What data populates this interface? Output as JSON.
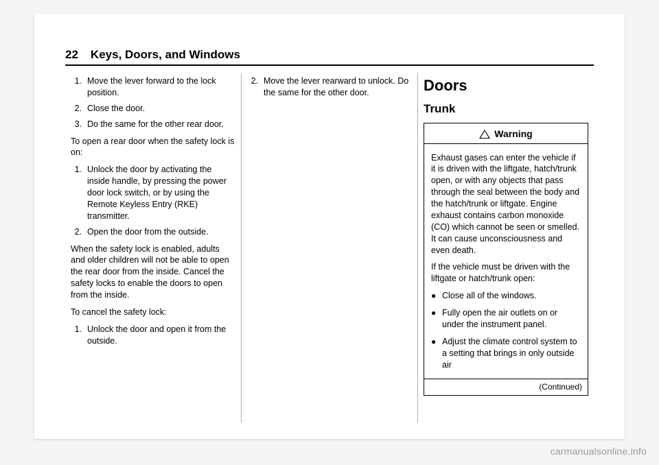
{
  "header": {
    "page_number": "22",
    "chapter_title": "Keys, Doors, and Windows"
  },
  "col1": {
    "list1": [
      "Move the lever forward to the lock position.",
      "Close the door.",
      "Do the same for the other rear door."
    ],
    "para1": "To open a rear door when the safety lock is on:",
    "list2": [
      "Unlock the door by activating the inside handle, by pressing the power door lock switch, or by using the Remote Keyless Entry (RKE) transmitter.",
      "Open the door from the outside."
    ],
    "para2": "When the safety lock is enabled, adults and older children will not be able to open the rear door from the inside. Cancel the safety locks to enable the doors to open from the inside.",
    "para3": "To cancel the safety lock:",
    "list3": [
      "Unlock the door and open it from the outside."
    ]
  },
  "col2": {
    "list1_start": 2,
    "list1": [
      "Move the lever rearward to unlock. Do the same for the other door."
    ]
  },
  "col3": {
    "h1": "Doors",
    "h2": "Trunk",
    "warning_label": "Warning",
    "warning_para1": "Exhaust gases can enter the vehicle if it is driven with the liftgate, hatch/trunk open, or with any objects that pass through the seal between the body and the hatch/trunk or liftgate. Engine exhaust contains carbon monoxide (CO) which cannot be seen or smelled. It can cause unconsciousness and even death.",
    "warning_para2": "If the vehicle must be driven with the liftgate or hatch/trunk open:",
    "warning_bullets": [
      "Close all of the windows.",
      "Fully open the air outlets on or under the instrument panel.",
      "Adjust the climate control system to a setting that brings in only outside air"
    ],
    "continued": "(Continued)"
  },
  "watermark": "carmanualsonline.info"
}
